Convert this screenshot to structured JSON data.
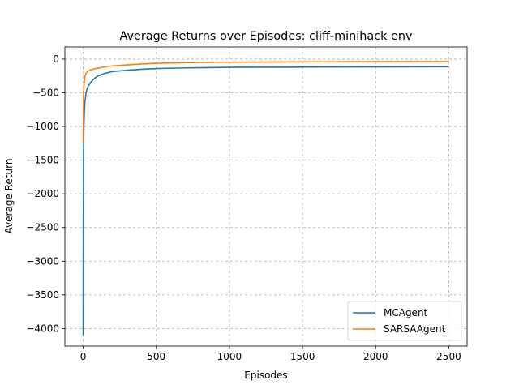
{
  "chart_data": {
    "type": "line",
    "title": "Average Returns over Episodes: cliff-minihack env",
    "xlabel": "Episodes",
    "ylabel": "Average Return",
    "xlim": [
      -125,
      2625
    ],
    "ylim": [
      -4260,
      180
    ],
    "xticks": [
      0,
      500,
      1000,
      1500,
      2000,
      2500
    ],
    "xtick_labels": [
      "0",
      "500",
      "1000",
      "1500",
      "2000",
      "2500"
    ],
    "yticks": [
      0,
      -500,
      -1000,
      -1500,
      -2000,
      -2500,
      -3000,
      -3500,
      -4000
    ],
    "ytick_labels": [
      "0",
      "−500",
      "−1000",
      "−1500",
      "−2000",
      "−2500",
      "−3000",
      "−3500",
      "−4000"
    ],
    "grid": true,
    "legend_position": "lower-right",
    "series": [
      {
        "name": "MCAgent",
        "color": "#1f77b4",
        "x": [
          0,
          1,
          2,
          3,
          5,
          8,
          12,
          20,
          30,
          50,
          75,
          100,
          150,
          200,
          300,
          400,
          500,
          700,
          1000,
          1500,
          2000,
          2500
        ],
        "y": [
          -4100,
          -2500,
          -1800,
          -1300,
          -1000,
          -800,
          -640,
          -500,
          -420,
          -350,
          -290,
          -250,
          -210,
          -185,
          -165,
          -150,
          -140,
          -130,
          -122,
          -118,
          -115,
          -113
        ]
      },
      {
        "name": "SARSAAgent",
        "color": "#ff7f0e",
        "x": [
          0,
          1,
          2,
          3,
          5,
          8,
          12,
          20,
          30,
          50,
          75,
          100,
          150,
          200,
          300,
          400,
          500,
          700,
          1000,
          1500,
          2000,
          2500
        ],
        "y": [
          -1230,
          -900,
          -700,
          -550,
          -420,
          -330,
          -260,
          -210,
          -185,
          -160,
          -145,
          -135,
          -115,
          -100,
          -85,
          -72,
          -62,
          -52,
          -45,
          -40,
          -37,
          -35
        ]
      }
    ]
  }
}
